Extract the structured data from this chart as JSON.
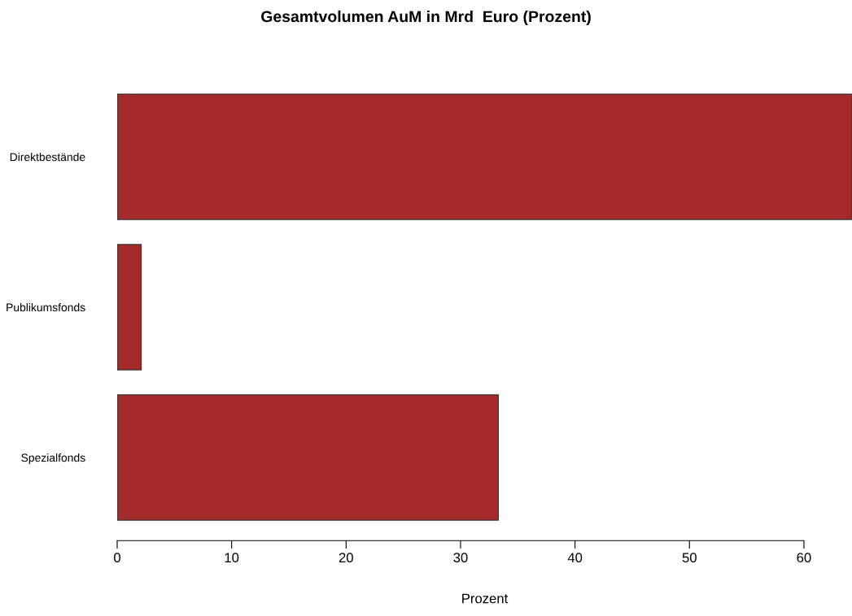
{
  "chart_data": {
    "type": "bar",
    "orientation": "horizontal",
    "title": "Gesamtvolumen AuM in Mrd  Euro (Prozent)",
    "xlabel": "Prozent",
    "categories": [
      "Direktbestände",
      "Publikumsfonds",
      "Spezialfonds"
    ],
    "values": [
      64.2,
      2.1,
      33.3
    ],
    "color": "#a52a2a",
    "xlim": [
      0,
      64.2
    ],
    "xticks": [
      0,
      10,
      20,
      30,
      40,
      50,
      60
    ],
    "grid": false
  }
}
